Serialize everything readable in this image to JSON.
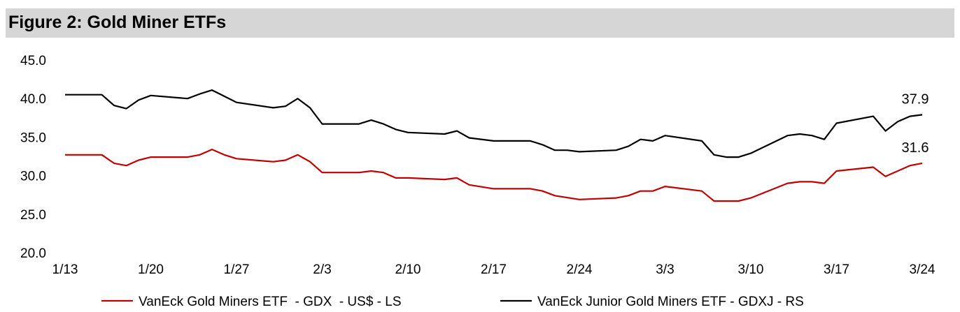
{
  "chart_data": {
    "type": "line",
    "title": "Figure 2: Gold Miner ETFs",
    "ylim": [
      20,
      45
    ],
    "yticks": [
      "20.0",
      "25.0",
      "30.0",
      "35.0",
      "40.0",
      "45.0"
    ],
    "xticks": [
      "1/13",
      "1/20",
      "1/27",
      "2/3",
      "2/10",
      "2/17",
      "2/24",
      "3/3",
      "3/10",
      "3/17",
      "3/24"
    ],
    "grid": false,
    "legend": "bottom",
    "series": [
      {
        "name": "VanEck Gold Miners ETF  - GDX  - US$ - LS",
        "color": "#c00000",
        "end_label": "31.6",
        "x": [
          "1/13",
          "1/16",
          "1/17",
          "1/18",
          "1/19",
          "1/20",
          "1/23",
          "1/24",
          "1/25",
          "1/26",
          "1/27",
          "1/30",
          "1/31",
          "2/1",
          "2/2",
          "2/3",
          "2/6",
          "2/7",
          "2/8",
          "2/9",
          "2/10",
          "2/13",
          "2/14",
          "2/15",
          "2/17",
          "2/20",
          "2/21",
          "2/22",
          "2/24",
          "2/27",
          "2/28",
          "3/1",
          "3/2",
          "3/3",
          "3/6",
          "3/7",
          "3/9",
          "3/10",
          "3/13",
          "3/14",
          "3/15",
          "3/16",
          "3/17",
          "3/20",
          "3/21",
          "3/22",
          "3/23",
          "3/24"
        ],
        "y": [
          32.7,
          32.7,
          31.6,
          31.3,
          32.0,
          32.4,
          32.4,
          32.7,
          33.4,
          32.7,
          32.2,
          31.8,
          32.0,
          32.7,
          31.8,
          30.4,
          30.4,
          30.6,
          30.4,
          29.7,
          29.7,
          29.5,
          29.7,
          28.8,
          28.3,
          28.3,
          28.0,
          27.4,
          26.9,
          27.1,
          27.4,
          28.0,
          28.0,
          28.6,
          28.0,
          26.7,
          26.7,
          27.1,
          29.0,
          29.2,
          29.2,
          29.0,
          30.6,
          31.1,
          29.9,
          30.6,
          31.3,
          31.6
        ]
      },
      {
        "name": "VanEck Junior Gold Miners ETF - GDXJ - RS",
        "color": "#000000",
        "end_label": "37.9",
        "x": [
          "1/13",
          "1/16",
          "1/17",
          "1/18",
          "1/19",
          "1/20",
          "1/23",
          "1/24",
          "1/25",
          "1/26",
          "1/27",
          "1/30",
          "1/31",
          "2/1",
          "2/2",
          "2/3",
          "2/6",
          "2/7",
          "2/8",
          "2/9",
          "2/10",
          "2/13",
          "2/14",
          "2/15",
          "2/17",
          "2/20",
          "2/21",
          "2/22",
          "2/23",
          "2/24",
          "2/27",
          "2/28",
          "3/1",
          "3/2",
          "3/3",
          "3/6",
          "3/7",
          "3/8",
          "3/9",
          "3/10",
          "3/13",
          "3/14",
          "3/15",
          "3/16",
          "3/17",
          "3/20",
          "3/21",
          "3/22",
          "3/23",
          "3/24"
        ],
        "y": [
          40.5,
          40.5,
          39.1,
          38.7,
          39.8,
          40.4,
          40.0,
          40.6,
          41.1,
          40.3,
          39.5,
          38.8,
          39.0,
          40.0,
          38.8,
          36.7,
          36.7,
          37.2,
          36.7,
          36.0,
          35.6,
          35.4,
          35.8,
          34.9,
          34.5,
          34.5,
          34.0,
          33.3,
          33.3,
          33.1,
          33.3,
          33.8,
          34.7,
          34.5,
          35.2,
          34.5,
          32.7,
          32.4,
          32.4,
          32.9,
          35.2,
          35.4,
          35.2,
          34.7,
          36.8,
          37.7,
          35.8,
          37.0,
          37.7,
          37.9
        ]
      }
    ]
  }
}
